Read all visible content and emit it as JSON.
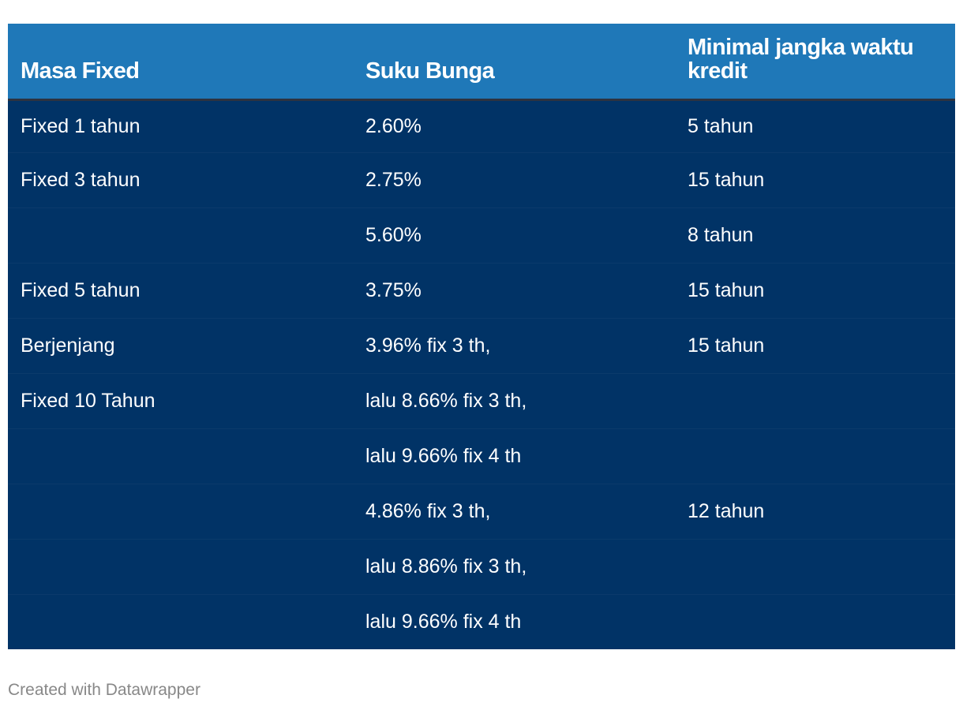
{
  "chart_data": {
    "type": "table",
    "columns": [
      "Masa Fixed",
      "Suku Bunga",
      "Minimal jangka waktu kredit"
    ],
    "rows": [
      [
        "Fixed 1 tahun",
        "2.60%",
        "5 tahun"
      ],
      [
        "Fixed 3 tahun",
        "2.75%",
        "15 tahun"
      ],
      [
        "",
        "5.60%",
        "8 tahun"
      ],
      [
        "Fixed 5 tahun",
        "3.75%",
        "15 tahun"
      ],
      [
        "Berjenjang",
        "3.96% fix 3 th,",
        "15 tahun"
      ],
      [
        "Fixed 10 Tahun",
        "lalu 8.66% fix 3 th,",
        ""
      ],
      [
        "",
        "lalu 9.66% fix 4 th",
        ""
      ],
      [
        "",
        "4.86% fix 3 th,",
        "12 tahun"
      ],
      [
        "",
        "lalu 8.86% fix 3 th,",
        ""
      ],
      [
        "",
        "lalu 9.66% fix 4 th",
        ""
      ]
    ]
  },
  "colors": {
    "header_bg": "#1f78b8",
    "body_bg": "#013366",
    "text": "#ffffff",
    "footer_text": "#888888"
  },
  "footer": {
    "credit": "Created with Datawrapper"
  }
}
